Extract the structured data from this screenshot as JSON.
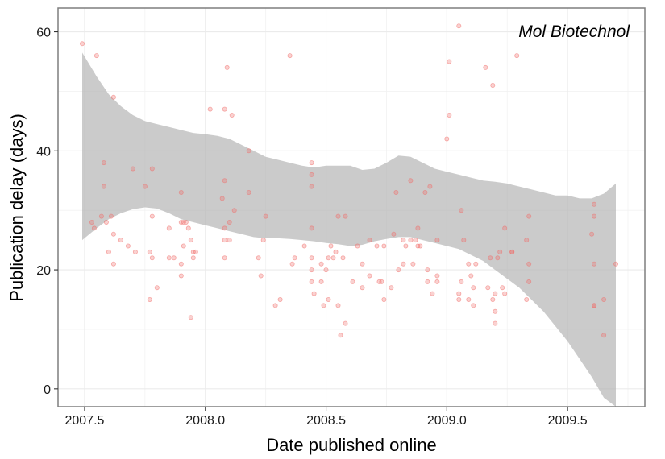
{
  "chart_data": {
    "type": "scatter",
    "title": "",
    "xlabel": "Date published online",
    "ylabel": "Publication delay (days)",
    "annotation": "Mol Biotechnol",
    "xlim": [
      2007.39,
      2009.82
    ],
    "ylim": [
      -3,
      64
    ],
    "x_ticks": [
      2007.5,
      2008.0,
      2008.5,
      2009.0,
      2009.5
    ],
    "x_tick_labels": [
      "2007.5",
      "2008.0",
      "2008.5",
      "2009.0",
      "2009.5"
    ],
    "y_ticks": [
      0,
      20,
      40,
      60
    ],
    "y_tick_labels": [
      "0",
      "20",
      "40",
      "60"
    ],
    "grid": true,
    "point_color": "#f0706c",
    "ribbon_color": "#b3b3b3",
    "points": [
      [
        2007.49,
        58
      ],
      [
        2007.53,
        28
      ],
      [
        2007.54,
        27
      ],
      [
        2007.55,
        56
      ],
      [
        2007.57,
        29
      ],
      [
        2007.58,
        38
      ],
      [
        2007.58,
        34
      ],
      [
        2007.59,
        28
      ],
      [
        2007.6,
        23
      ],
      [
        2007.61,
        29
      ],
      [
        2007.62,
        49
      ],
      [
        2007.62,
        26
      ],
      [
        2007.62,
        21
      ],
      [
        2007.65,
        25
      ],
      [
        2007.68,
        24
      ],
      [
        2007.7,
        37
      ],
      [
        2007.71,
        23
      ],
      [
        2007.75,
        34
      ],
      [
        2007.77,
        23
      ],
      [
        2007.77,
        15
      ],
      [
        2007.78,
        37
      ],
      [
        2007.78,
        29
      ],
      [
        2007.78,
        22
      ],
      [
        2007.8,
        17
      ],
      [
        2007.85,
        27
      ],
      [
        2007.85,
        22
      ],
      [
        2007.87,
        22
      ],
      [
        2007.9,
        33
      ],
      [
        2007.9,
        28
      ],
      [
        2007.9,
        21
      ],
      [
        2007.9,
        19
      ],
      [
        2007.91,
        24
      ],
      [
        2007.91,
        28
      ],
      [
        2007.92,
        28
      ],
      [
        2007.93,
        27
      ],
      [
        2007.94,
        25
      ],
      [
        2007.94,
        12
      ],
      [
        2007.95,
        23
      ],
      [
        2007.95,
        22
      ],
      [
        2007.96,
        23
      ],
      [
        2008.02,
        47
      ],
      [
        2008.07,
        32
      ],
      [
        2008.08,
        47
      ],
      [
        2008.08,
        35
      ],
      [
        2008.08,
        27
      ],
      [
        2008.08,
        25
      ],
      [
        2008.08,
        22
      ],
      [
        2008.09,
        54
      ],
      [
        2008.1,
        28
      ],
      [
        2008.1,
        25
      ],
      [
        2008.11,
        46
      ],
      [
        2008.12,
        30
      ],
      [
        2008.18,
        40
      ],
      [
        2008.18,
        33
      ],
      [
        2008.22,
        22
      ],
      [
        2008.23,
        19
      ],
      [
        2008.24,
        25
      ],
      [
        2008.25,
        29
      ],
      [
        2008.29,
        14
      ],
      [
        2008.31,
        15
      ],
      [
        2008.35,
        56
      ],
      [
        2008.36,
        21
      ],
      [
        2008.37,
        22
      ],
      [
        2008.41,
        24
      ],
      [
        2008.44,
        38
      ],
      [
        2008.44,
        36
      ],
      [
        2008.44,
        34
      ],
      [
        2008.44,
        27
      ],
      [
        2008.44,
        22
      ],
      [
        2008.44,
        20
      ],
      [
        2008.44,
        18
      ],
      [
        2008.45,
        16
      ],
      [
        2008.48,
        21
      ],
      [
        2008.48,
        18
      ],
      [
        2008.49,
        14
      ],
      [
        2008.5,
        20
      ],
      [
        2008.51,
        22
      ],
      [
        2008.51,
        15
      ],
      [
        2008.52,
        24
      ],
      [
        2008.53,
        22
      ],
      [
        2008.54,
        23
      ],
      [
        2008.55,
        14
      ],
      [
        2008.55,
        29
      ],
      [
        2008.56,
        9
      ],
      [
        2008.57,
        22
      ],
      [
        2008.58,
        29
      ],
      [
        2008.58,
        11
      ],
      [
        2008.61,
        18
      ],
      [
        2008.63,
        24
      ],
      [
        2008.65,
        21
      ],
      [
        2008.65,
        17
      ],
      [
        2008.68,
        25
      ],
      [
        2008.68,
        19
      ],
      [
        2008.71,
        24
      ],
      [
        2008.72,
        18
      ],
      [
        2008.73,
        18
      ],
      [
        2008.74,
        15
      ],
      [
        2008.74,
        24
      ],
      [
        2008.77,
        17
      ],
      [
        2008.78,
        26
      ],
      [
        2008.79,
        33
      ],
      [
        2008.8,
        20
      ],
      [
        2008.82,
        21
      ],
      [
        2008.82,
        25
      ],
      [
        2008.83,
        24
      ],
      [
        2008.85,
        35
      ],
      [
        2008.85,
        25
      ],
      [
        2008.86,
        21
      ],
      [
        2008.87,
        25
      ],
      [
        2008.88,
        27
      ],
      [
        2008.88,
        24
      ],
      [
        2008.89,
        24
      ],
      [
        2008.91,
        33
      ],
      [
        2008.92,
        18
      ],
      [
        2008.92,
        20
      ],
      [
        2008.93,
        34
      ],
      [
        2008.94,
        16
      ],
      [
        2008.96,
        25
      ],
      [
        2008.96,
        19
      ],
      [
        2008.96,
        18
      ],
      [
        2009.0,
        42
      ],
      [
        2009.01,
        46
      ],
      [
        2009.01,
        55
      ],
      [
        2009.05,
        61
      ],
      [
        2009.05,
        16
      ],
      [
        2009.05,
        15
      ],
      [
        2009.06,
        30
      ],
      [
        2009.06,
        18
      ],
      [
        2009.07,
        25
      ],
      [
        2009.09,
        21
      ],
      [
        2009.09,
        15
      ],
      [
        2009.1,
        19
      ],
      [
        2009.11,
        17
      ],
      [
        2009.11,
        14
      ],
      [
        2009.12,
        21
      ],
      [
        2009.16,
        54
      ],
      [
        2009.17,
        17
      ],
      [
        2009.18,
        22
      ],
      [
        2009.19,
        15
      ],
      [
        2009.19,
        51
      ],
      [
        2009.2,
        11
      ],
      [
        2009.2,
        13
      ],
      [
        2009.2,
        16
      ],
      [
        2009.21,
        22
      ],
      [
        2009.22,
        23
      ],
      [
        2009.23,
        17
      ],
      [
        2009.24,
        27
      ],
      [
        2009.24,
        16
      ],
      [
        2009.27,
        23
      ],
      [
        2009.27,
        23
      ],
      [
        2009.29,
        56
      ],
      [
        2009.33,
        25
      ],
      [
        2009.33,
        15
      ],
      [
        2009.34,
        18
      ],
      [
        2009.34,
        29
      ],
      [
        2009.34,
        21
      ],
      [
        2009.6,
        26
      ],
      [
        2009.61,
        31
      ],
      [
        2009.61,
        29
      ],
      [
        2009.61,
        21
      ],
      [
        2009.61,
        14
      ],
      [
        2009.61,
        14
      ],
      [
        2009.65,
        9
      ],
      [
        2009.65,
        15
      ],
      [
        2009.7,
        21
      ]
    ],
    "ribbon": {
      "x": [
        2007.49,
        2007.55,
        2007.6,
        2007.65,
        2007.7,
        2007.75,
        2007.8,
        2007.85,
        2007.9,
        2007.95,
        2008.0,
        2008.05,
        2008.1,
        2008.15,
        2008.2,
        2008.25,
        2008.3,
        2008.35,
        2008.4,
        2008.45,
        2008.5,
        2008.55,
        2008.6,
        2008.65,
        2008.7,
        2008.75,
        2008.8,
        2008.85,
        2008.9,
        2008.95,
        2009.0,
        2009.05,
        2009.1,
        2009.15,
        2009.2,
        2009.25,
        2009.3,
        2009.35,
        2009.4,
        2009.45,
        2009.5,
        2009.55,
        2009.6,
        2009.65,
        2009.7
      ],
      "upper": [
        56.5,
        52.5,
        49.5,
        47.5,
        46.0,
        45.0,
        44.5,
        44.0,
        43.5,
        43.0,
        42.8,
        42.5,
        42.0,
        41.0,
        40.0,
        39.0,
        38.5,
        38.0,
        37.5,
        37.2,
        37.5,
        37.5,
        37.5,
        36.8,
        37.0,
        38.0,
        39.2,
        39.0,
        38.0,
        37.0,
        36.5,
        36.0,
        35.5,
        35.0,
        34.8,
        34.5,
        34.0,
        33.5,
        33.0,
        32.5,
        32.5,
        32.0,
        32.0,
        32.8,
        34.5
      ],
      "lower": [
        25.0,
        27.0,
        28.5,
        29.5,
        30.2,
        30.5,
        30.3,
        29.5,
        28.5,
        28.0,
        27.5,
        27.0,
        26.5,
        26.0,
        25.5,
        25.3,
        25.3,
        25.2,
        25.0,
        24.8,
        24.5,
        24.3,
        24.0,
        24.2,
        24.8,
        25.2,
        25.5,
        25.5,
        25.0,
        24.5,
        24.0,
        23.5,
        22.5,
        21.5,
        20.0,
        18.5,
        17.0,
        15.0,
        13.0,
        10.5,
        8.0,
        5.0,
        2.0,
        -1.5,
        -5.5
      ]
    }
  }
}
